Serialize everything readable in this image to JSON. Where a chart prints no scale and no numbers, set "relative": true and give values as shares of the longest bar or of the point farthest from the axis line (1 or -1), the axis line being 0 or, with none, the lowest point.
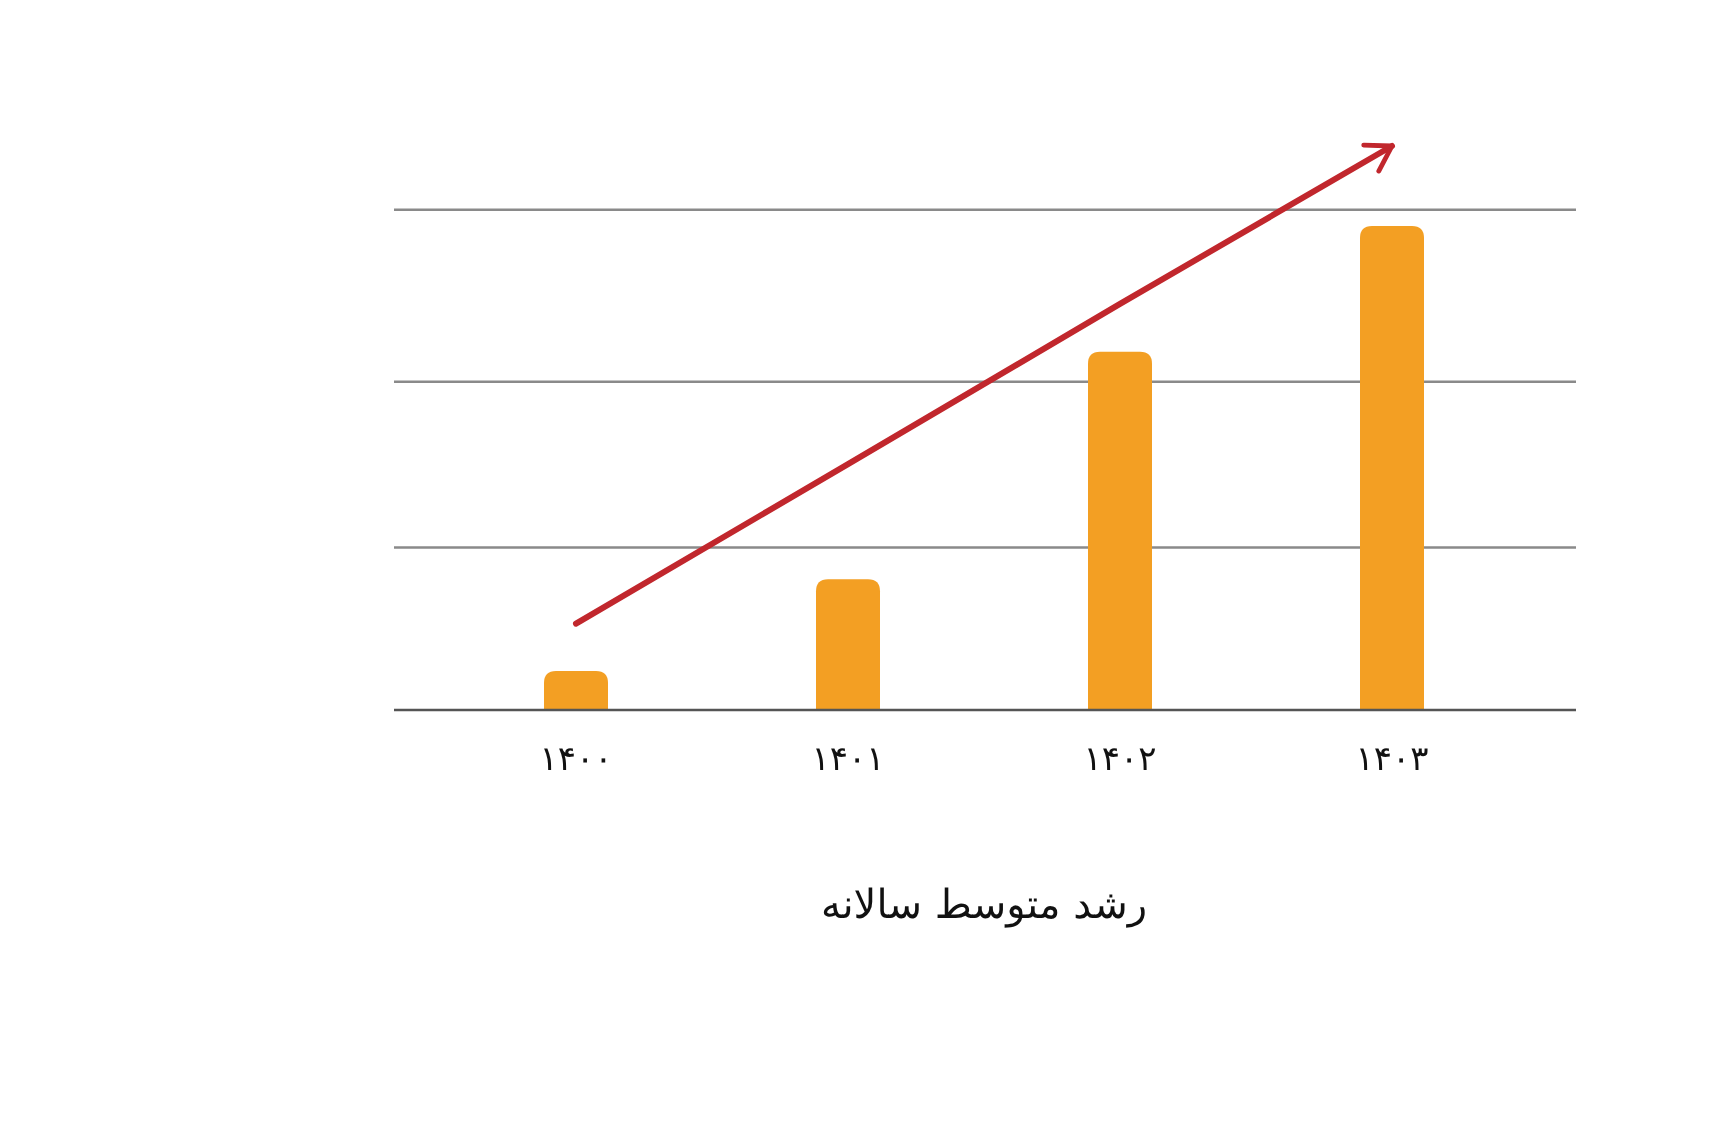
{
  "chart_data": {
    "type": "bar",
    "xlabel": "رشد متوسط سالانه",
    "categories": [
      "۱۴۰۰",
      "۱۴۰۱",
      "۱۴۰۲",
      "۱۴۰۳"
    ],
    "series": [
      {
        "color": "#f39f23",
        "values": [
          0.069,
          0.232,
          0.635,
          0.858
        ]
      },
      {
        "type": "line",
        "color": "#c1272d",
        "values": [
          0.153,
          0.436,
          0.72,
          1
        ]
      }
    ],
    "relative": true,
    "legend": false,
    "marker": "none",
    "line_style": "solid",
    "ref_lines": [
      {
        "axis": "y",
        "value": 0.288,
        "color": "#8a8a8a"
      },
      {
        "axis": "y",
        "value": 0.582,
        "color": "#8a8a8a"
      },
      {
        "axis": "y",
        "value": 0.887,
        "color": "#8a8a8a"
      }
    ]
  }
}
